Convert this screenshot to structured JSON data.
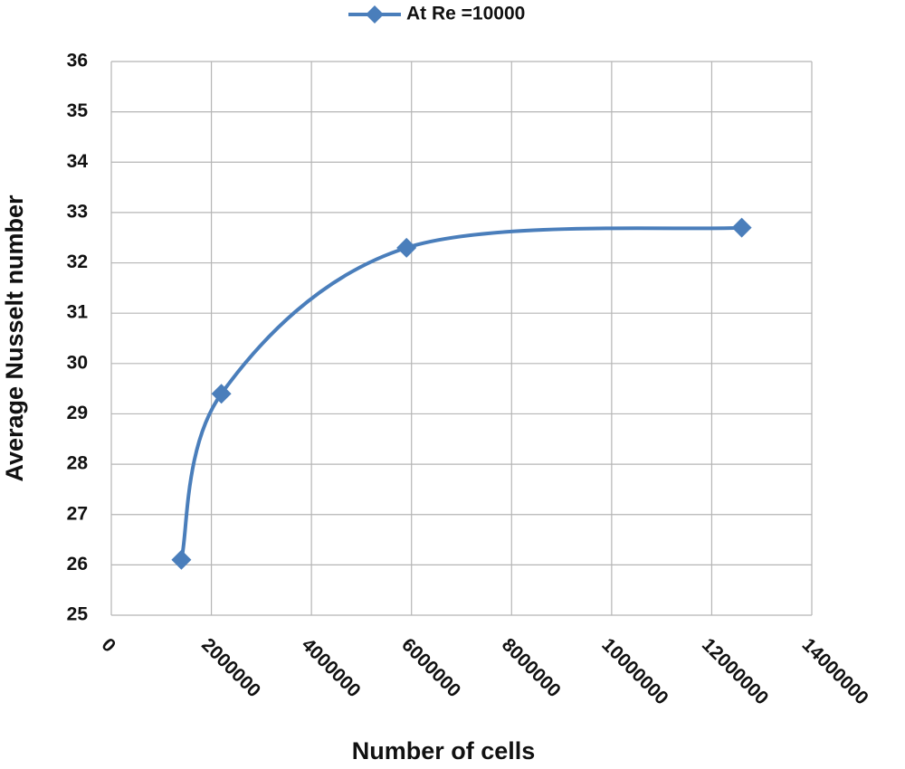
{
  "chart_data": {
    "type": "line",
    "smooth": true,
    "x_label": "Number of cells",
    "y_label": "Average Nusselt number",
    "x": [
      1400000,
      2200000,
      5900000,
      12600000
    ],
    "series": [
      {
        "name": "At Re =10000",
        "color": "#4a7ebb",
        "values": [
          26.1,
          29.4,
          32.3,
          32.7
        ]
      }
    ],
    "xlim": [
      0,
      14000000
    ],
    "xticks": [
      0,
      2000000,
      4000000,
      6000000,
      8000000,
      10000000,
      12000000,
      14000000
    ],
    "ylim": [
      25,
      36
    ],
    "yticks": [
      25,
      26,
      27,
      28,
      29,
      30,
      31,
      32,
      33,
      34,
      35,
      36
    ],
    "grid": true,
    "legend": "top"
  }
}
